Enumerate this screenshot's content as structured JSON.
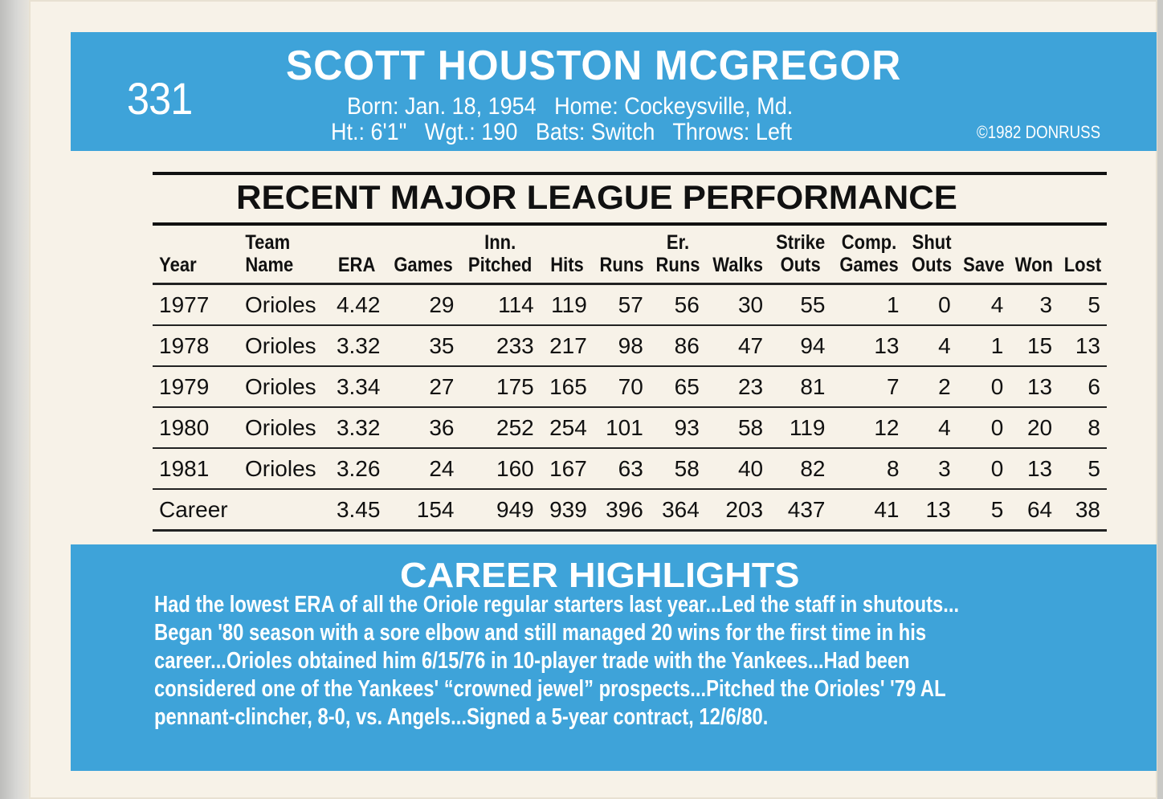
{
  "card": {
    "number": "331",
    "name": "SCOTT HOUSTON MCGREGOR",
    "bio_line1": "Born: Jan. 18, 1954   Home: Cockeysville, Md.",
    "bio_line2": "Ht.: 6'1\"   Wgt.: 190   Bats: Switch   Throws: Left",
    "copyright": "©1982 DONRUSS"
  },
  "performance": {
    "title": "RECENT MAJOR LEAGUE PERFORMANCE",
    "headers": [
      [
        "",
        "Year"
      ],
      [
        "Team",
        "Name"
      ],
      [
        "",
        "ERA"
      ],
      [
        "",
        "Games"
      ],
      [
        "Inn.",
        "Pitched"
      ],
      [
        "",
        "Hits"
      ],
      [
        "",
        "Runs"
      ],
      [
        "Er.",
        "Runs"
      ],
      [
        "",
        "Walks"
      ],
      [
        "Strike",
        "Outs"
      ],
      [
        "Comp.",
        "Games"
      ],
      [
        "Shut",
        "Outs"
      ],
      [
        "",
        "Save"
      ],
      [
        "",
        "Won"
      ],
      [
        "",
        "Lost"
      ]
    ],
    "rows": [
      [
        "1977",
        "Orioles",
        "4.42",
        "29",
        "114",
        "119",
        "57",
        "56",
        "30",
        "55",
        "1",
        "0",
        "4",
        "3",
        "5"
      ],
      [
        "1978",
        "Orioles",
        "3.32",
        "35",
        "233",
        "217",
        "98",
        "86",
        "47",
        "94",
        "13",
        "4",
        "1",
        "15",
        "13"
      ],
      [
        "1979",
        "Orioles",
        "3.34",
        "27",
        "175",
        "165",
        "70",
        "65",
        "23",
        "81",
        "7",
        "2",
        "0",
        "13",
        "6"
      ],
      [
        "1980",
        "Orioles",
        "3.32",
        "36",
        "252",
        "254",
        "101",
        "93",
        "58",
        "119",
        "12",
        "4",
        "0",
        "20",
        "8"
      ],
      [
        "1981",
        "Orioles",
        "3.26",
        "24",
        "160",
        "167",
        "63",
        "58",
        "40",
        "82",
        "8",
        "3",
        "0",
        "13",
        "5"
      ]
    ],
    "career": [
      "Career",
      "",
      "3.45",
      "154",
      "949",
      "939",
      "396",
      "364",
      "203",
      "437",
      "41",
      "13",
      "5",
      "64",
      "38"
    ]
  },
  "highlights": {
    "title": "CAREER HIGHLIGHTS",
    "text": "Had the lowest ERA of all the Oriole regular starters last year...Led the staff in shutouts...\nBegan '80 season with a sore elbow and still managed 20 wins for the first time in his\ncareer...Orioles obtained him 6/15/76 in 10-player trade with the Yankees...Had been\nconsidered one of the Yankees' “crowned jewel” prospects...Pitched the Orioles' '79 AL\npennant-clincher, 8-0, vs. Angels...Signed a 5-year contract, 12/6/80."
  },
  "colors": {
    "panel_blue": "#3ea3d9",
    "card_stock": "#f7f2e8",
    "ink": "#111111"
  }
}
